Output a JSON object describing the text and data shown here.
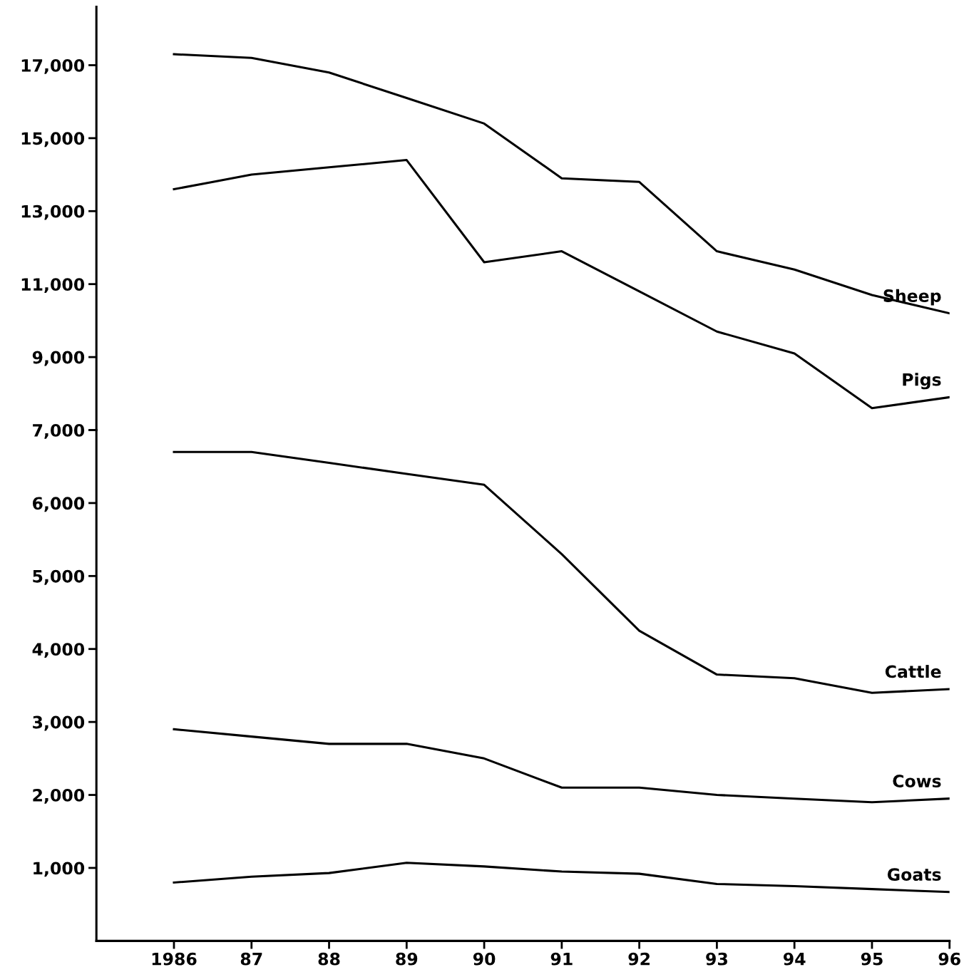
{
  "chart_data": [
    {
      "type": "line",
      "x": [
        1986,
        1987,
        1988,
        1989,
        1990,
        1991,
        1992,
        1993,
        1994,
        1995,
        1996
      ],
      "series": [
        {
          "name": "Sheep",
          "color": "#000000",
          "values": [
            17300,
            17200,
            16800,
            16100,
            15400,
            13900,
            13800,
            11900,
            11400,
            10700,
            10200
          ]
        },
        {
          "name": "Pigs",
          "color": "#000000",
          "values": [
            13600,
            14000,
            14200,
            14400,
            11600,
            11900,
            10800,
            9700,
            9100,
            7600,
            7900
          ]
        }
      ],
      "xlim": [
        1985.0,
        1996.0
      ],
      "ylim": [
        7000,
        18600
      ],
      "grid": false,
      "legend": false,
      "yticks": [
        {
          "value": 7000,
          "label": null
        },
        {
          "value": 9000,
          "label": "9,000"
        },
        {
          "value": 11000,
          "label": "11,000"
        },
        {
          "value": 13000,
          "label": "13,000"
        },
        {
          "value": 15000,
          "label": "15,000"
        },
        {
          "value": 17000,
          "label": "17,000"
        }
      ],
      "tick_labels": "y",
      "marker": "none",
      "line_style": "solid"
    },
    {
      "type": "line",
      "x": [
        1986,
        1987,
        1988,
        1989,
        1990,
        1991,
        1992,
        1993,
        1994,
        1995,
        1996
      ],
      "series": [
        {
          "name": "Cattle",
          "color": "#000000",
          "values": [
            6700,
            6700,
            6550,
            6400,
            6250,
            5300,
            4250,
            3650,
            3600,
            3400,
            3450
          ]
        },
        {
          "name": "Cows",
          "color": "#000000",
          "values": [
            2900,
            2800,
            2700,
            2700,
            2500,
            2100,
            2100,
            2000,
            1950,
            1900,
            1950
          ]
        },
        {
          "name": "Goats",
          "color": "#000000",
          "values": [
            800,
            880,
            930,
            1070,
            1020,
            950,
            920,
            780,
            750,
            710,
            670
          ]
        }
      ],
      "xlim": [
        1985.0,
        1996.0
      ],
      "xticks": [
        {
          "value": 1986,
          "label": "1986"
        },
        {
          "value": 1987,
          "label": "87"
        },
        {
          "value": 1988,
          "label": "88"
        },
        {
          "value": 1989,
          "label": "89"
        },
        {
          "value": 1990,
          "label": "90"
        },
        {
          "value": 1991,
          "label": "91"
        },
        {
          "value": 1992,
          "label": "92"
        },
        {
          "value": 1993,
          "label": "93"
        },
        {
          "value": 1994,
          "label": "94"
        },
        {
          "value": 1995,
          "label": "95"
        },
        {
          "value": 1996,
          "label": "96"
        }
      ],
      "ylim": [
        0,
        7000
      ],
      "grid": false,
      "legend": false,
      "yticks": [
        {
          "value": 1000,
          "label": "1,000"
        },
        {
          "value": 2000,
          "label": "2,000"
        },
        {
          "value": 3000,
          "label": "3,000"
        },
        {
          "value": 4000,
          "label": "4,000"
        },
        {
          "value": 5000,
          "label": "5,000"
        },
        {
          "value": 6000,
          "label": "6,000"
        },
        {
          "value": 7000,
          "label": "7,000"
        }
      ],
      "marker": "none",
      "line_style": "solid"
    }
  ]
}
